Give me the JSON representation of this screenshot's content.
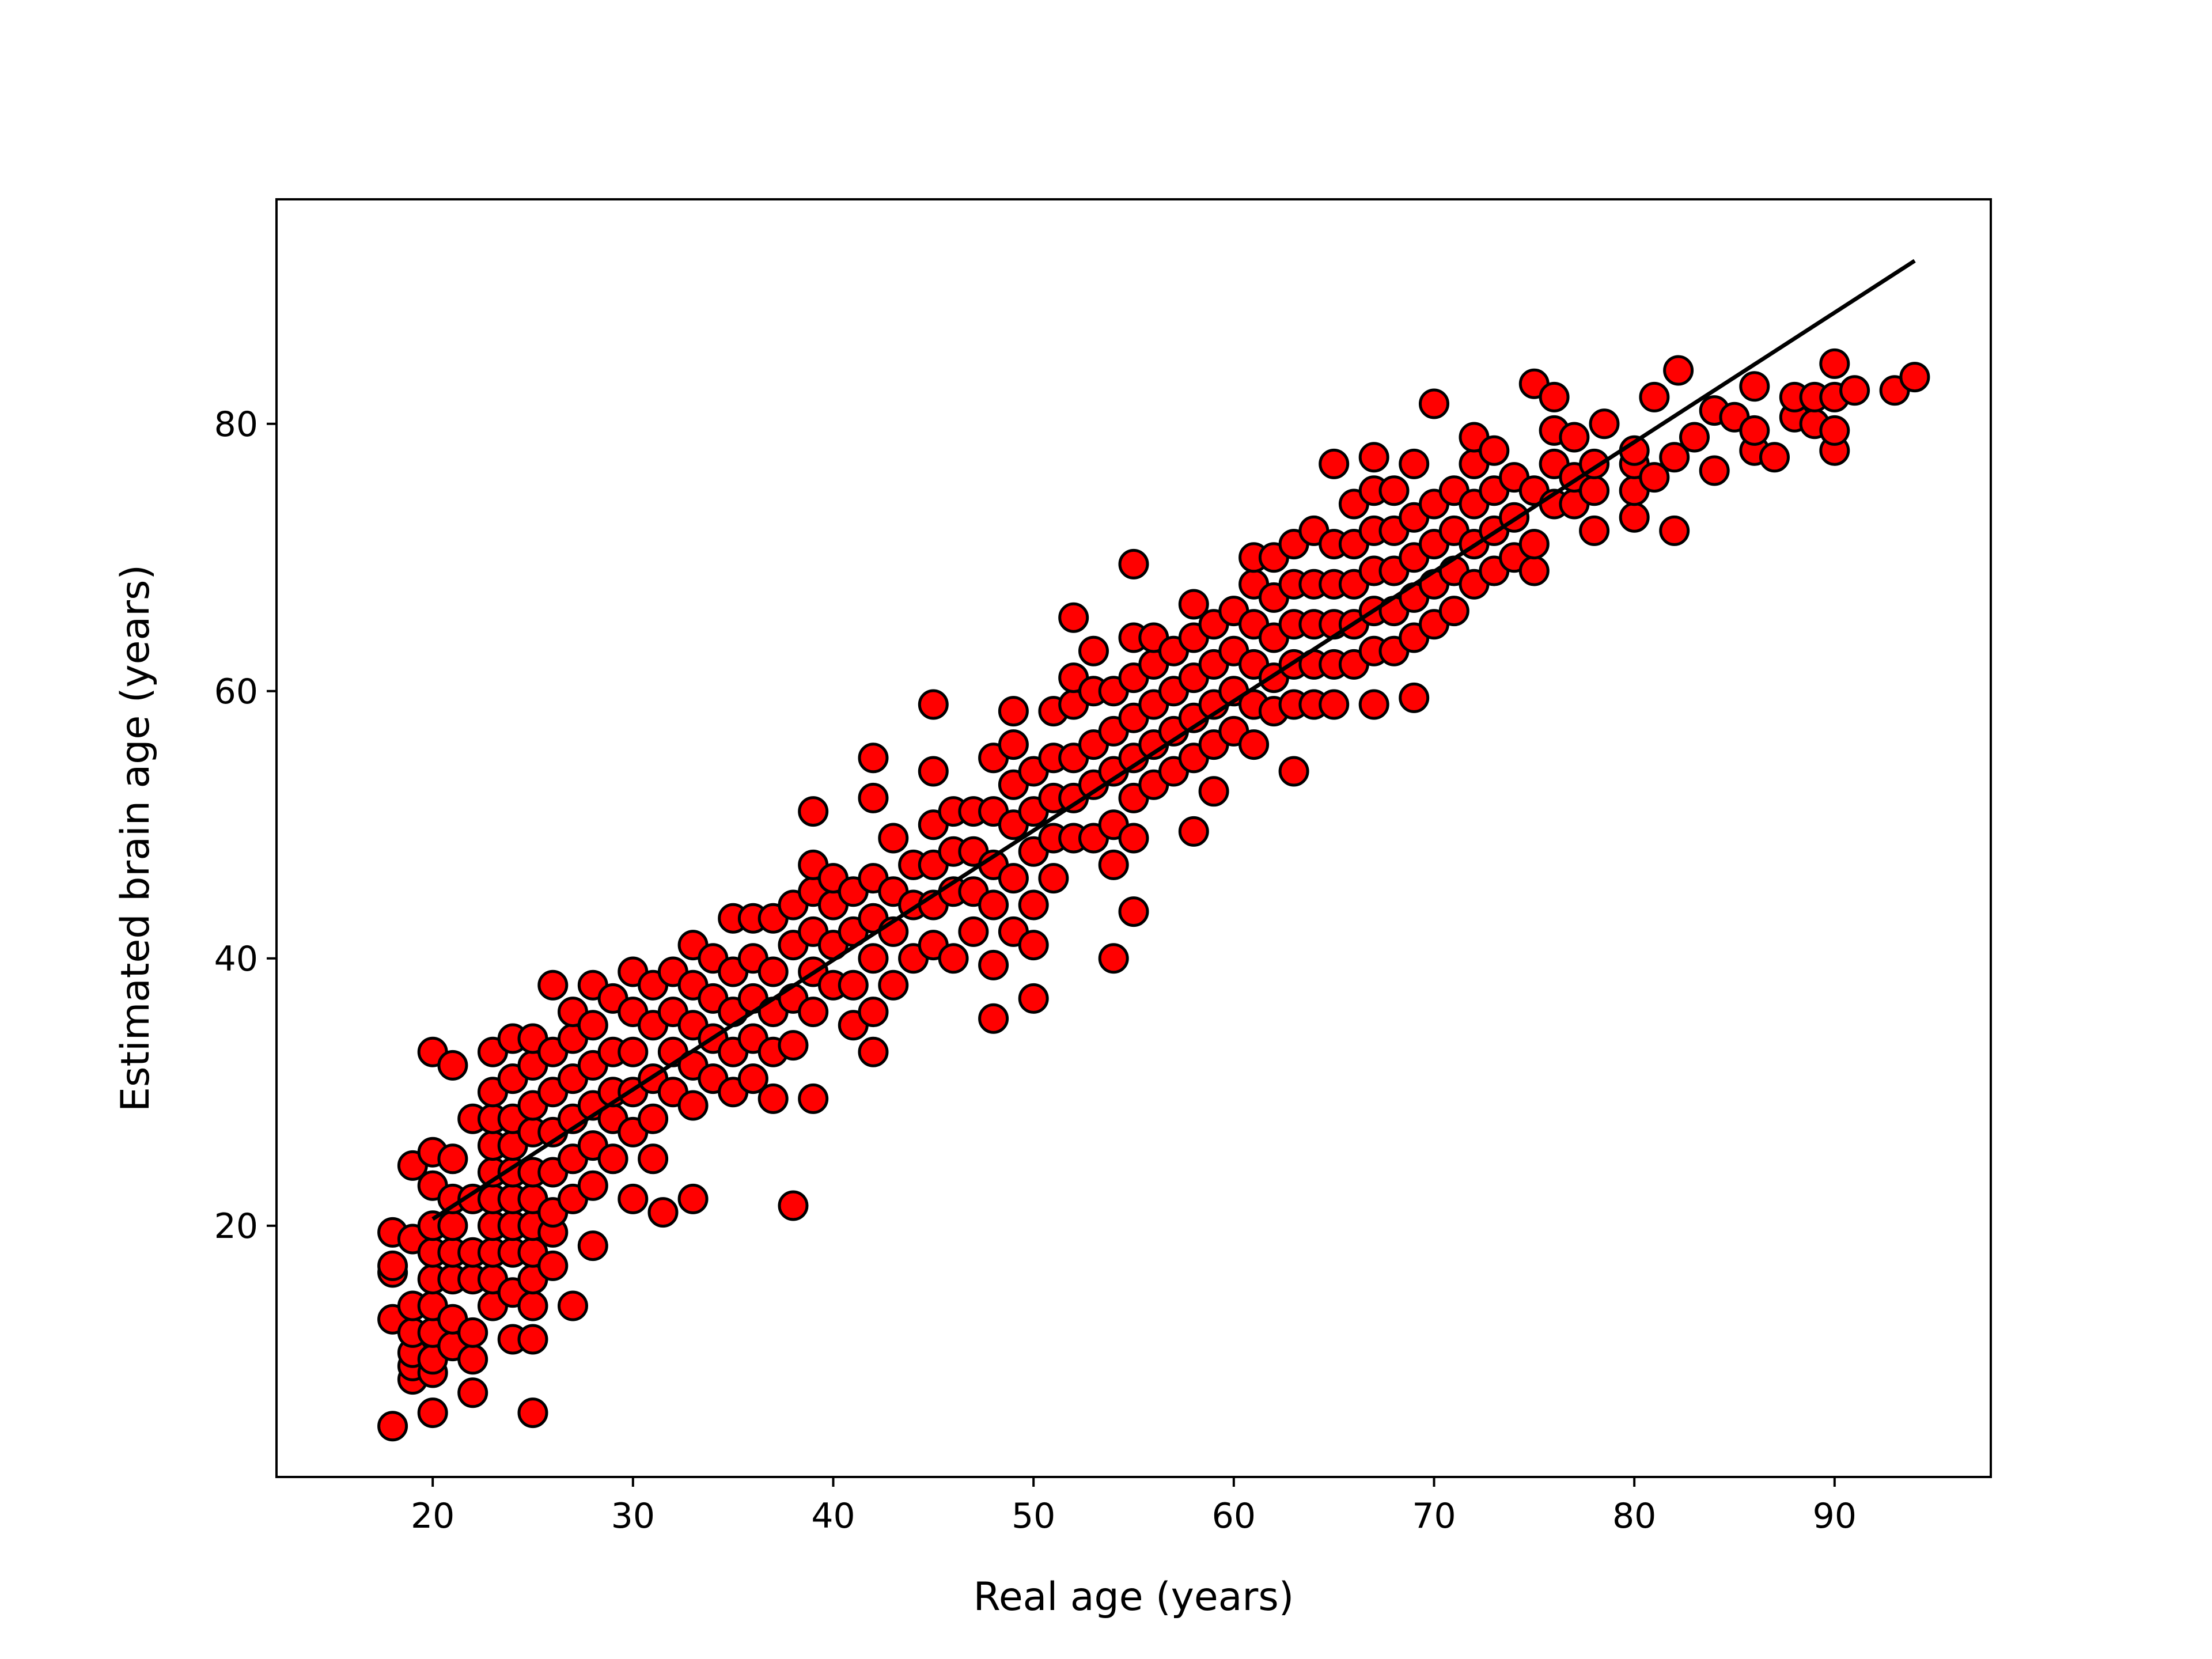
{
  "chart_data": {
    "type": "scatter",
    "title": "",
    "xlabel": "Real age (years)",
    "ylabel": "Estimated brain age (years)",
    "xlim": [
      12.2,
      97.8
    ],
    "ylim": [
      1.2,
      96.8
    ],
    "xticks": [
      20,
      30,
      40,
      50,
      60,
      70,
      80,
      90
    ],
    "yticks": [
      20,
      40,
      60,
      80
    ],
    "xtick_labels": [
      "20",
      "30",
      "40",
      "50",
      "60",
      "70",
      "80",
      "90"
    ],
    "ytick_labels": [
      "20",
      "40",
      "60",
      "80"
    ],
    "grid": false,
    "marker_color": "#ff0000",
    "marker_edge_color": "#000000",
    "line_color": "#000000",
    "reference_line": {
      "x": [
        20,
        94
      ],
      "y": [
        20.5,
        92.2
      ]
    },
    "points": [
      [
        18,
        5
      ],
      [
        18,
        13
      ],
      [
        18,
        16.5
      ],
      [
        18,
        17
      ],
      [
        18,
        19.5
      ],
      [
        19,
        8.5
      ],
      [
        19,
        9.5
      ],
      [
        19,
        10.5
      ],
      [
        19,
        12
      ],
      [
        19,
        14
      ],
      [
        19,
        19
      ],
      [
        19,
        24.5
      ],
      [
        20,
        6
      ],
      [
        20,
        9
      ],
      [
        20,
        10
      ],
      [
        20,
        12
      ],
      [
        20,
        14
      ],
      [
        20,
        16
      ],
      [
        20,
        18
      ],
      [
        20,
        20
      ],
      [
        20,
        23
      ],
      [
        20,
        25.5
      ],
      [
        20,
        33
      ],
      [
        21,
        11
      ],
      [
        21,
        13
      ],
      [
        21,
        16
      ],
      [
        21,
        18
      ],
      [
        21,
        20
      ],
      [
        21,
        22
      ],
      [
        21,
        25
      ],
      [
        21,
        32
      ],
      [
        22,
        7.5
      ],
      [
        22,
        10
      ],
      [
        22,
        12
      ],
      [
        22,
        16
      ],
      [
        22,
        18
      ],
      [
        22,
        22
      ],
      [
        22,
        28
      ],
      [
        23,
        14
      ],
      [
        23,
        16
      ],
      [
        23,
        18
      ],
      [
        23,
        20
      ],
      [
        23,
        22
      ],
      [
        23,
        24
      ],
      [
        23,
        26
      ],
      [
        23,
        28
      ],
      [
        23,
        30
      ],
      [
        23,
        33
      ],
      [
        24,
        11.5
      ],
      [
        24,
        15
      ],
      [
        24,
        18
      ],
      [
        24,
        20
      ],
      [
        24,
        22
      ],
      [
        24,
        24
      ],
      [
        24,
        26
      ],
      [
        24,
        28
      ],
      [
        24,
        31
      ],
      [
        24,
        34
      ],
      [
        25,
        6
      ],
      [
        25,
        11.5
      ],
      [
        25,
        14
      ],
      [
        25,
        16
      ],
      [
        25,
        18
      ],
      [
        25,
        20
      ],
      [
        25,
        22
      ],
      [
        25,
        24
      ],
      [
        25,
        27
      ],
      [
        25,
        29
      ],
      [
        25,
        32
      ],
      [
        25,
        34
      ],
      [
        26,
        17
      ],
      [
        26,
        19.5
      ],
      [
        26,
        21
      ],
      [
        26,
        24
      ],
      [
        26,
        27
      ],
      [
        26,
        30
      ],
      [
        26,
        33
      ],
      [
        26,
        38
      ],
      [
        27,
        14
      ],
      [
        27,
        22
      ],
      [
        27,
        25
      ],
      [
        27,
        28
      ],
      [
        27,
        31
      ],
      [
        27,
        34
      ],
      [
        27,
        36
      ],
      [
        28,
        18.5
      ],
      [
        28,
        23
      ],
      [
        28,
        26
      ],
      [
        28,
        29
      ],
      [
        28,
        32
      ],
      [
        28,
        35
      ],
      [
        28,
        38
      ],
      [
        29,
        25
      ],
      [
        29,
        28
      ],
      [
        29,
        30
      ],
      [
        29,
        33
      ],
      [
        29,
        37
      ],
      [
        30,
        22
      ],
      [
        30,
        27
      ],
      [
        30,
        30
      ],
      [
        30,
        33
      ],
      [
        30,
        36
      ],
      [
        30,
        39
      ],
      [
        31,
        25
      ],
      [
        31,
        28
      ],
      [
        31,
        31
      ],
      [
        31,
        35
      ],
      [
        31,
        38
      ],
      [
        31.5,
        21
      ],
      [
        32,
        30
      ],
      [
        32,
        33
      ],
      [
        32,
        36
      ],
      [
        32,
        39
      ],
      [
        33,
        22
      ],
      [
        33,
        29
      ],
      [
        33,
        32
      ],
      [
        33,
        35
      ],
      [
        33,
        38
      ],
      [
        33,
        41
      ],
      [
        34,
        31
      ],
      [
        34,
        34
      ],
      [
        34,
        37
      ],
      [
        34,
        40
      ],
      [
        35,
        30
      ],
      [
        35,
        33
      ],
      [
        35,
        36
      ],
      [
        35,
        39
      ],
      [
        35,
        43
      ],
      [
        36,
        31
      ],
      [
        36,
        34
      ],
      [
        36,
        37
      ],
      [
        36,
        40
      ],
      [
        36,
        43
      ],
      [
        37,
        29.5
      ],
      [
        37,
        33
      ],
      [
        37,
        36
      ],
      [
        37,
        39
      ],
      [
        37,
        43
      ],
      [
        38,
        21.5
      ],
      [
        38,
        33.5
      ],
      [
        38,
        37
      ],
      [
        38,
        41
      ],
      [
        38,
        44
      ],
      [
        39,
        29.5
      ],
      [
        39,
        36
      ],
      [
        39,
        39
      ],
      [
        39,
        42
      ],
      [
        39,
        45
      ],
      [
        39,
        47
      ],
      [
        39,
        51
      ],
      [
        40,
        38
      ],
      [
        40,
        41
      ],
      [
        40,
        44
      ],
      [
        40,
        46
      ],
      [
        41,
        35
      ],
      [
        41,
        38
      ],
      [
        41,
        42
      ],
      [
        41,
        45
      ],
      [
        42,
        33
      ],
      [
        42,
        36
      ],
      [
        42,
        40
      ],
      [
        42,
        43
      ],
      [
        42,
        46
      ],
      [
        42,
        52
      ],
      [
        42,
        55
      ],
      [
        43,
        38
      ],
      [
        43,
        42
      ],
      [
        43,
        45
      ],
      [
        43,
        49
      ],
      [
        44,
        40
      ],
      [
        44,
        44
      ],
      [
        44,
        47
      ],
      [
        45,
        41
      ],
      [
        45,
        44
      ],
      [
        45,
        47
      ],
      [
        45,
        50
      ],
      [
        45,
        54
      ],
      [
        45,
        59
      ],
      [
        46,
        40
      ],
      [
        46,
        45
      ],
      [
        46,
        48
      ],
      [
        46,
        51
      ],
      [
        47,
        42
      ],
      [
        47,
        45
      ],
      [
        47,
        48
      ],
      [
        47,
        51
      ],
      [
        48,
        35.5
      ],
      [
        48,
        39.5
      ],
      [
        48,
        44
      ],
      [
        48,
        47
      ],
      [
        48,
        51
      ],
      [
        48,
        55
      ],
      [
        49,
        42
      ],
      [
        49,
        46
      ],
      [
        49,
        50
      ],
      [
        49,
        53
      ],
      [
        49,
        56
      ],
      [
        49,
        58.5
      ],
      [
        50,
        37
      ],
      [
        50,
        41
      ],
      [
        50,
        44
      ],
      [
        50,
        48
      ],
      [
        50,
        51
      ],
      [
        50,
        54
      ],
      [
        51,
        46
      ],
      [
        51,
        49
      ],
      [
        51,
        52
      ],
      [
        51,
        55
      ],
      [
        51,
        58.5
      ],
      [
        52,
        49
      ],
      [
        52,
        52
      ],
      [
        52,
        55
      ],
      [
        52,
        59
      ],
      [
        52,
        61
      ],
      [
        52,
        65.5
      ],
      [
        53,
        49
      ],
      [
        53,
        53
      ],
      [
        53,
        56
      ],
      [
        53,
        60
      ],
      [
        53,
        63
      ],
      [
        54,
        40
      ],
      [
        54,
        47
      ],
      [
        54,
        50
      ],
      [
        54,
        54
      ],
      [
        54,
        57
      ],
      [
        54,
        60
      ],
      [
        55,
        43.5
      ],
      [
        55,
        49
      ],
      [
        55,
        52
      ],
      [
        55,
        55
      ],
      [
        55,
        58
      ],
      [
        55,
        61
      ],
      [
        55,
        64
      ],
      [
        55,
        69.5
      ],
      [
        56,
        53
      ],
      [
        56,
        56
      ],
      [
        56,
        59
      ],
      [
        56,
        62
      ],
      [
        56,
        64
      ],
      [
        57,
        54
      ],
      [
        57,
        57
      ],
      [
        57,
        60
      ],
      [
        57,
        63
      ],
      [
        58,
        49.5
      ],
      [
        58,
        55
      ],
      [
        58,
        58
      ],
      [
        58,
        61
      ],
      [
        58,
        64
      ],
      [
        58,
        66.5
      ],
      [
        59,
        52.5
      ],
      [
        59,
        56
      ],
      [
        59,
        59
      ],
      [
        59,
        62
      ],
      [
        59,
        65
      ],
      [
        60,
        57
      ],
      [
        60,
        60
      ],
      [
        60,
        63
      ],
      [
        60,
        66
      ],
      [
        61,
        56
      ],
      [
        61,
        59
      ],
      [
        61,
        62
      ],
      [
        61,
        65
      ],
      [
        61,
        68
      ],
      [
        61,
        70
      ],
      [
        62,
        58.5
      ],
      [
        62,
        61
      ],
      [
        62,
        64
      ],
      [
        62,
        67
      ],
      [
        62,
        70
      ],
      [
        63,
        54
      ],
      [
        63,
        59
      ],
      [
        63,
        62
      ],
      [
        63,
        65
      ],
      [
        63,
        68
      ],
      [
        63,
        71
      ],
      [
        64,
        59
      ],
      [
        64,
        62
      ],
      [
        64,
        65
      ],
      [
        64,
        68
      ],
      [
        64,
        72
      ],
      [
        65,
        59
      ],
      [
        65,
        62
      ],
      [
        65,
        65
      ],
      [
        65,
        68
      ],
      [
        65,
        71
      ],
      [
        65,
        77
      ],
      [
        66,
        62
      ],
      [
        66,
        65
      ],
      [
        66,
        68
      ],
      [
        66,
        71
      ],
      [
        66,
        74
      ],
      [
        67,
        59
      ],
      [
        67,
        63
      ],
      [
        67,
        66
      ],
      [
        67,
        69
      ],
      [
        67,
        72
      ],
      [
        67,
        75
      ],
      [
        67,
        77.5
      ],
      [
        68,
        63
      ],
      [
        68,
        66
      ],
      [
        68,
        69
      ],
      [
        68,
        72
      ],
      [
        68,
        75
      ],
      [
        69,
        59.5
      ],
      [
        69,
        64
      ],
      [
        69,
        67
      ],
      [
        69,
        70
      ],
      [
        69,
        73
      ],
      [
        69,
        77
      ],
      [
        70,
        65
      ],
      [
        70,
        68
      ],
      [
        70,
        71
      ],
      [
        70,
        74
      ],
      [
        70,
        81.5
      ],
      [
        71,
        66
      ],
      [
        71,
        69
      ],
      [
        71,
        72
      ],
      [
        71,
        75
      ],
      [
        72,
        68
      ],
      [
        72,
        71
      ],
      [
        72,
        74
      ],
      [
        72,
        77
      ],
      [
        72,
        79
      ],
      [
        73,
        69
      ],
      [
        73,
        72
      ],
      [
        73,
        75
      ],
      [
        73,
        78
      ],
      [
        74,
        70
      ],
      [
        74,
        73
      ],
      [
        74,
        76
      ],
      [
        75,
        69
      ],
      [
        75,
        71
      ],
      [
        75,
        75
      ],
      [
        75,
        83
      ],
      [
        76,
        74
      ],
      [
        76,
        77
      ],
      [
        76,
        79.5
      ],
      [
        76,
        82
      ],
      [
        77,
        74
      ],
      [
        77,
        76
      ],
      [
        77,
        79
      ],
      [
        78,
        72
      ],
      [
        78,
        75
      ],
      [
        78,
        77
      ],
      [
        78.5,
        80
      ],
      [
        80,
        73
      ],
      [
        80,
        75
      ],
      [
        80,
        77
      ],
      [
        80,
        78
      ],
      [
        81,
        76
      ],
      [
        81,
        82
      ],
      [
        82,
        72
      ],
      [
        82,
        77.5
      ],
      [
        82.2,
        84
      ],
      [
        83,
        79
      ],
      [
        84,
        76.5
      ],
      [
        84,
        81
      ],
      [
        85,
        80.5
      ],
      [
        86,
        78
      ],
      [
        86,
        79.5
      ],
      [
        86,
        82.8
      ],
      [
        87,
        77.5
      ],
      [
        88,
        80.5
      ],
      [
        88,
        82
      ],
      [
        89,
        80
      ],
      [
        89,
        82
      ],
      [
        90,
        78
      ],
      [
        90,
        79.5
      ],
      [
        90,
        82
      ],
      [
        90,
        84.5
      ],
      [
        91,
        82.5
      ],
      [
        93,
        82.5
      ],
      [
        94,
        83.5
      ]
    ]
  }
}
